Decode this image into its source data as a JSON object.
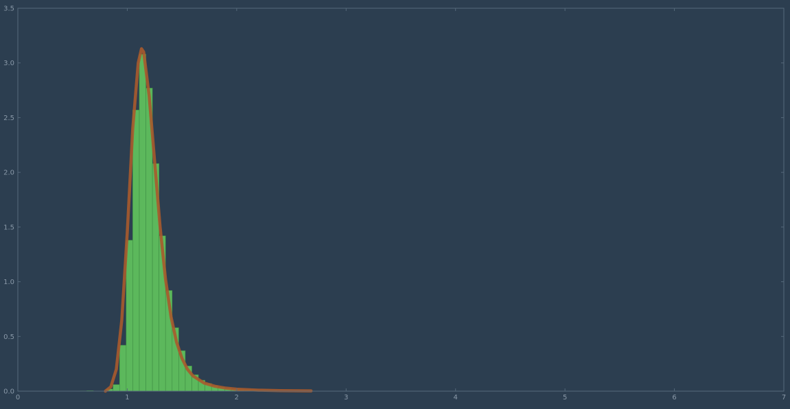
{
  "chart_data": {
    "type": "bar",
    "title": "",
    "xlabel": "",
    "ylabel": "",
    "xlim": [
      0,
      7
    ],
    "ylim": [
      0,
      3.5
    ],
    "x_ticks": [
      "0",
      "1",
      "2",
      "3",
      "4",
      "5",
      "6",
      "7"
    ],
    "y_ticks": [
      "0.0",
      "0.5",
      "1.0",
      "1.5",
      "2.0",
      "2.5",
      "3.0",
      "3.5"
    ],
    "grid": false,
    "legend": "none",
    "colors": {
      "background": "#2c3e50",
      "histogram_fill": "#5cb85c",
      "histogram_edge": "#3f8f44",
      "fit_curve": "#a85a2c",
      "axis": "#56697b",
      "text": "#8a99a8"
    },
    "histogram": {
      "bin_width": 0.06,
      "bins": [
        {
          "x0": 0.57,
          "x1": 0.63,
          "value": 0.002
        },
        {
          "x0": 0.63,
          "x1": 0.69,
          "value": 0.004
        },
        {
          "x0": 0.81,
          "x1": 0.87,
          "value": 0.02
        },
        {
          "x0": 0.87,
          "x1": 0.93,
          "value": 0.06
        },
        {
          "x0": 0.93,
          "x1": 0.99,
          "value": 0.42
        },
        {
          "x0": 0.99,
          "x1": 1.05,
          "value": 1.38
        },
        {
          "x0": 1.05,
          "x1": 1.11,
          "value": 2.57
        },
        {
          "x0": 1.11,
          "x1": 1.17,
          "value": 3.08
        },
        {
          "x0": 1.17,
          "x1": 1.23,
          "value": 2.77
        },
        {
          "x0": 1.23,
          "x1": 1.29,
          "value": 2.08
        },
        {
          "x0": 1.29,
          "x1": 1.35,
          "value": 1.42
        },
        {
          "x0": 1.35,
          "x1": 1.41,
          "value": 0.92
        },
        {
          "x0": 1.41,
          "x1": 1.47,
          "value": 0.58
        },
        {
          "x0": 1.47,
          "x1": 1.53,
          "value": 0.37
        },
        {
          "x0": 1.53,
          "x1": 1.59,
          "value": 0.23
        },
        {
          "x0": 1.59,
          "x1": 1.65,
          "value": 0.15
        },
        {
          "x0": 1.65,
          "x1": 1.71,
          "value": 0.1
        },
        {
          "x0": 1.71,
          "x1": 1.77,
          "value": 0.07
        },
        {
          "x0": 1.77,
          "x1": 1.83,
          "value": 0.05
        },
        {
          "x0": 1.83,
          "x1": 1.89,
          "value": 0.035
        },
        {
          "x0": 1.89,
          "x1": 1.95,
          "value": 0.025
        },
        {
          "x0": 1.95,
          "x1": 2.01,
          "value": 0.018
        },
        {
          "x0": 2.01,
          "x1": 2.07,
          "value": 0.013
        },
        {
          "x0": 2.07,
          "x1": 2.13,
          "value": 0.01
        },
        {
          "x0": 2.13,
          "x1": 2.19,
          "value": 0.008
        },
        {
          "x0": 2.19,
          "x1": 2.25,
          "value": 0.006
        },
        {
          "x0": 2.25,
          "x1": 2.31,
          "value": 0.005
        },
        {
          "x0": 2.31,
          "x1": 2.37,
          "value": 0.004
        }
      ]
    },
    "series": [
      {
        "type": "line",
        "x": [
          0.8,
          0.85,
          0.9,
          0.95,
          1.0,
          1.05,
          1.1,
          1.13,
          1.15,
          1.2,
          1.25,
          1.3,
          1.35,
          1.4,
          1.45,
          1.5,
          1.55,
          1.6,
          1.7,
          1.8,
          1.9,
          2.0,
          2.2,
          2.4,
          2.68
        ],
        "y": [
          0.0,
          0.04,
          0.2,
          0.65,
          1.45,
          2.4,
          3.0,
          3.13,
          3.1,
          2.7,
          2.1,
          1.5,
          1.02,
          0.68,
          0.45,
          0.3,
          0.2,
          0.14,
          0.075,
          0.045,
          0.028,
          0.018,
          0.009,
          0.005,
          0.002
        ]
      }
    ]
  }
}
